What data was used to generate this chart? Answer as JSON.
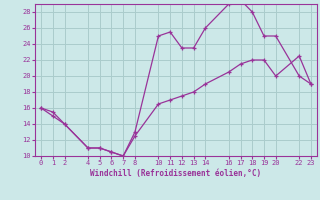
{
  "xlabel": "Windchill (Refroidissement éolien,°C)",
  "bg_color": "#cce8e8",
  "grid_color": "#aacccc",
  "line_color": "#993399",
  "xlim": [
    -0.5,
    23.5
  ],
  "ylim": [
    10,
    29
  ],
  "xticks": [
    0,
    1,
    2,
    4,
    5,
    6,
    7,
    8,
    10,
    11,
    12,
    13,
    14,
    16,
    17,
    18,
    19,
    20,
    22,
    23
  ],
  "yticks": [
    10,
    12,
    14,
    16,
    18,
    20,
    22,
    24,
    26,
    28
  ],
  "line1_x": [
    0,
    1,
    2,
    4,
    5,
    6,
    7,
    8,
    10,
    11,
    12,
    13,
    14,
    16,
    17,
    18,
    19,
    20,
    22,
    23
  ],
  "line1_y": [
    16,
    15,
    14,
    11,
    11,
    10.5,
    10,
    13,
    25,
    25.5,
    23.5,
    23.5,
    26,
    29,
    29.5,
    28,
    25,
    25,
    20,
    19
  ],
  "line2_x": [
    0,
    1,
    2,
    4,
    5,
    6,
    7,
    8,
    10,
    11,
    12,
    13,
    14,
    16,
    17,
    18,
    19,
    20,
    22,
    23
  ],
  "line2_y": [
    16,
    15.5,
    14,
    11,
    11,
    10.5,
    10,
    12.5,
    16.5,
    17,
    17.5,
    18,
    19,
    20.5,
    21.5,
    22,
    22,
    20,
    22.5,
    19
  ]
}
